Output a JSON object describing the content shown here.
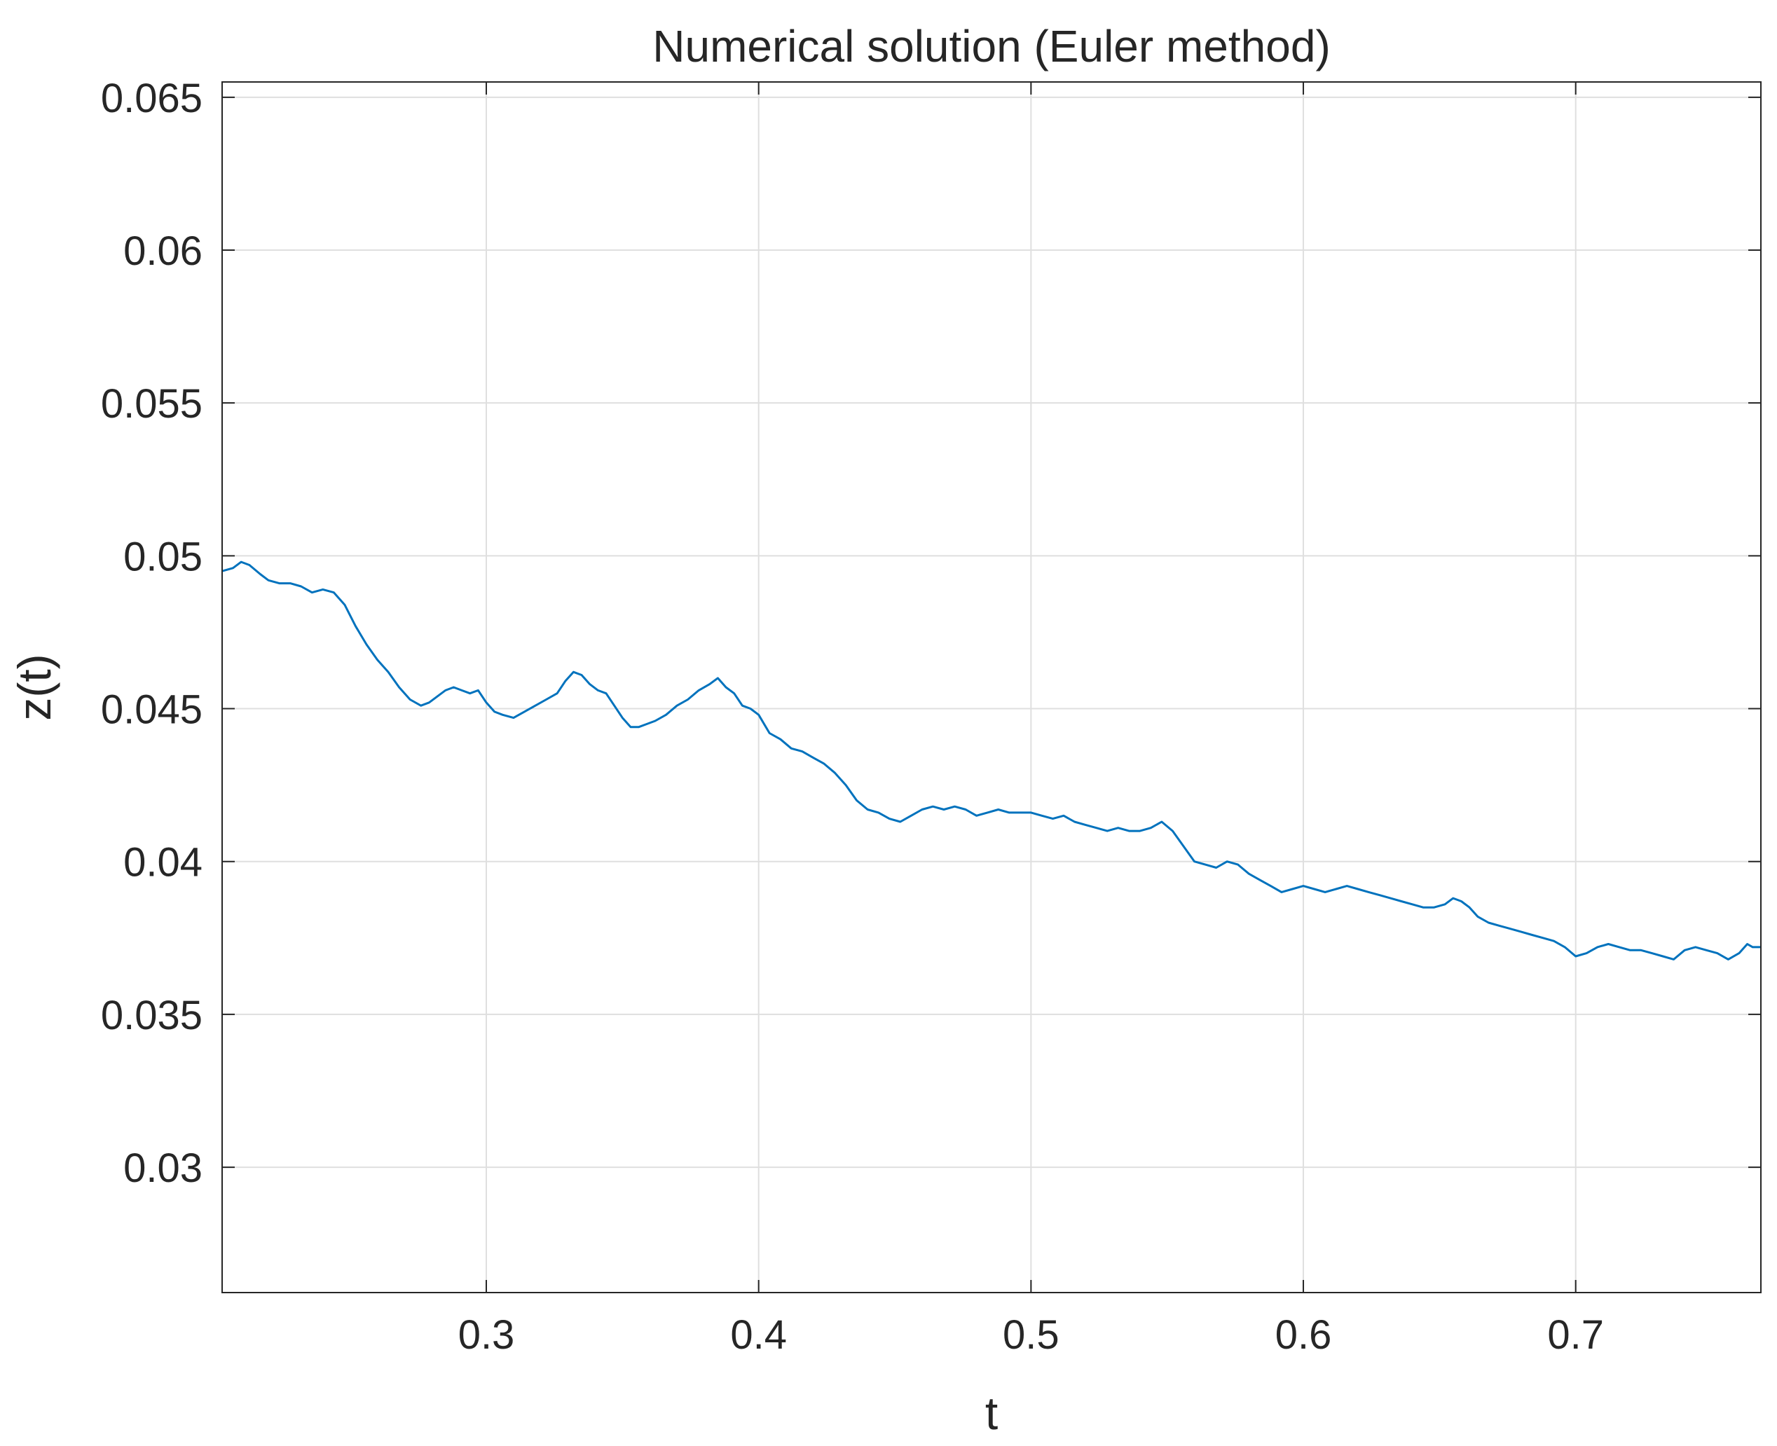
{
  "chart_data": {
    "type": "line",
    "title": "Numerical solution (Euler method)",
    "xlabel": "t",
    "ylabel": "z(t)",
    "xlim": [
      0.203,
      0.768
    ],
    "ylim": [
      0.0259,
      0.0655
    ],
    "xticks": [
      0.3,
      0.4,
      0.5,
      0.6,
      0.7
    ],
    "xtick_labels": [
      "0.3",
      "0.4",
      "0.5",
      "0.6",
      "0.7"
    ],
    "yticks": [
      0.03,
      0.035,
      0.04,
      0.045,
      0.05,
      0.055,
      0.06,
      0.065
    ],
    "ytick_labels": [
      "0.03",
      "0.035",
      "0.04",
      "0.045",
      "0.05",
      "0.055",
      "0.06",
      "0.065"
    ],
    "grid": true,
    "series_color": "#0072BD",
    "series": [
      {
        "x": [
          0.203,
          0.207,
          0.21,
          0.213,
          0.217,
          0.22,
          0.224,
          0.228,
          0.232,
          0.236,
          0.24,
          0.244,
          0.248,
          0.252,
          0.256,
          0.26,
          0.264,
          0.268,
          0.272,
          0.276,
          0.279,
          0.282,
          0.285,
          0.288,
          0.291,
          0.294,
          0.297,
          0.3,
          0.303,
          0.306,
          0.31,
          0.314,
          0.318,
          0.322,
          0.326,
          0.329,
          0.332,
          0.335,
          0.338,
          0.341,
          0.344,
          0.347,
          0.35,
          0.353,
          0.356,
          0.359,
          0.362,
          0.366,
          0.37,
          0.374,
          0.378,
          0.382,
          0.385,
          0.388,
          0.391,
          0.394,
          0.397,
          0.4,
          0.404,
          0.408,
          0.412,
          0.416,
          0.42,
          0.424,
          0.428,
          0.432,
          0.436,
          0.44,
          0.444,
          0.448,
          0.452,
          0.456,
          0.46,
          0.464,
          0.468,
          0.472,
          0.476,
          0.48,
          0.484,
          0.488,
          0.492,
          0.496,
          0.5,
          0.504,
          0.508,
          0.512,
          0.516,
          0.52,
          0.524,
          0.528,
          0.532,
          0.536,
          0.54,
          0.544,
          0.548,
          0.552,
          0.556,
          0.56,
          0.564,
          0.568,
          0.572,
          0.576,
          0.58,
          0.584,
          0.588,
          0.592,
          0.596,
          0.6,
          0.604,
          0.608,
          0.612,
          0.616,
          0.62,
          0.624,
          0.628,
          0.632,
          0.636,
          0.64,
          0.644,
          0.648,
          0.652,
          0.655,
          0.658,
          0.661,
          0.664,
          0.668,
          0.672,
          0.676,
          0.68,
          0.684,
          0.688,
          0.692,
          0.696,
          0.7,
          0.704,
          0.708,
          0.712,
          0.716,
          0.72,
          0.724,
          0.728,
          0.732,
          0.736,
          0.74,
          0.744,
          0.748,
          0.752,
          0.756,
          0.76,
          0.763,
          0.765,
          0.768
        ],
        "y": [
          0.0495,
          0.0496,
          0.0498,
          0.0497,
          0.0494,
          0.0492,
          0.0491,
          0.0491,
          0.049,
          0.0488,
          0.0489,
          0.0488,
          0.0484,
          0.0477,
          0.0471,
          0.0466,
          0.0462,
          0.0457,
          0.0453,
          0.0451,
          0.0452,
          0.0454,
          0.0456,
          0.0457,
          0.0456,
          0.0455,
          0.0456,
          0.0452,
          0.0449,
          0.0448,
          0.0447,
          0.0449,
          0.0451,
          0.0453,
          0.0455,
          0.0459,
          0.0462,
          0.0461,
          0.0458,
          0.0456,
          0.0455,
          0.0451,
          0.0447,
          0.0444,
          0.0444,
          0.0445,
          0.0446,
          0.0448,
          0.0451,
          0.0453,
          0.0456,
          0.0458,
          0.046,
          0.0457,
          0.0455,
          0.0451,
          0.045,
          0.0448,
          0.0442,
          0.044,
          0.0437,
          0.0436,
          0.0434,
          0.0432,
          0.0429,
          0.0425,
          0.042,
          0.0417,
          0.0416,
          0.0414,
          0.0413,
          0.0415,
          0.0417,
          0.0418,
          0.0417,
          0.0418,
          0.0417,
          0.0415,
          0.0416,
          0.0417,
          0.0416,
          0.0416,
          0.0416,
          0.0415,
          0.0414,
          0.0415,
          0.0413,
          0.0412,
          0.0411,
          0.041,
          0.0411,
          0.041,
          0.041,
          0.0411,
          0.0413,
          0.041,
          0.0405,
          0.04,
          0.0399,
          0.0398,
          0.04,
          0.0399,
          0.0396,
          0.0394,
          0.0392,
          0.039,
          0.0391,
          0.0392,
          0.0391,
          0.039,
          0.0391,
          0.0392,
          0.0391,
          0.039,
          0.0389,
          0.0388,
          0.0387,
          0.0386,
          0.0385,
          0.0385,
          0.0386,
          0.0388,
          0.0387,
          0.0385,
          0.0382,
          0.038,
          0.0379,
          0.0378,
          0.0377,
          0.0376,
          0.0375,
          0.0374,
          0.0372,
          0.0369,
          0.037,
          0.0372,
          0.0373,
          0.0372,
          0.0371,
          0.0371,
          0.037,
          0.0369,
          0.0368,
          0.0371,
          0.0372,
          0.0371,
          0.037,
          0.0368,
          0.037,
          0.0373,
          0.0372,
          0.0372
        ]
      }
    ]
  }
}
